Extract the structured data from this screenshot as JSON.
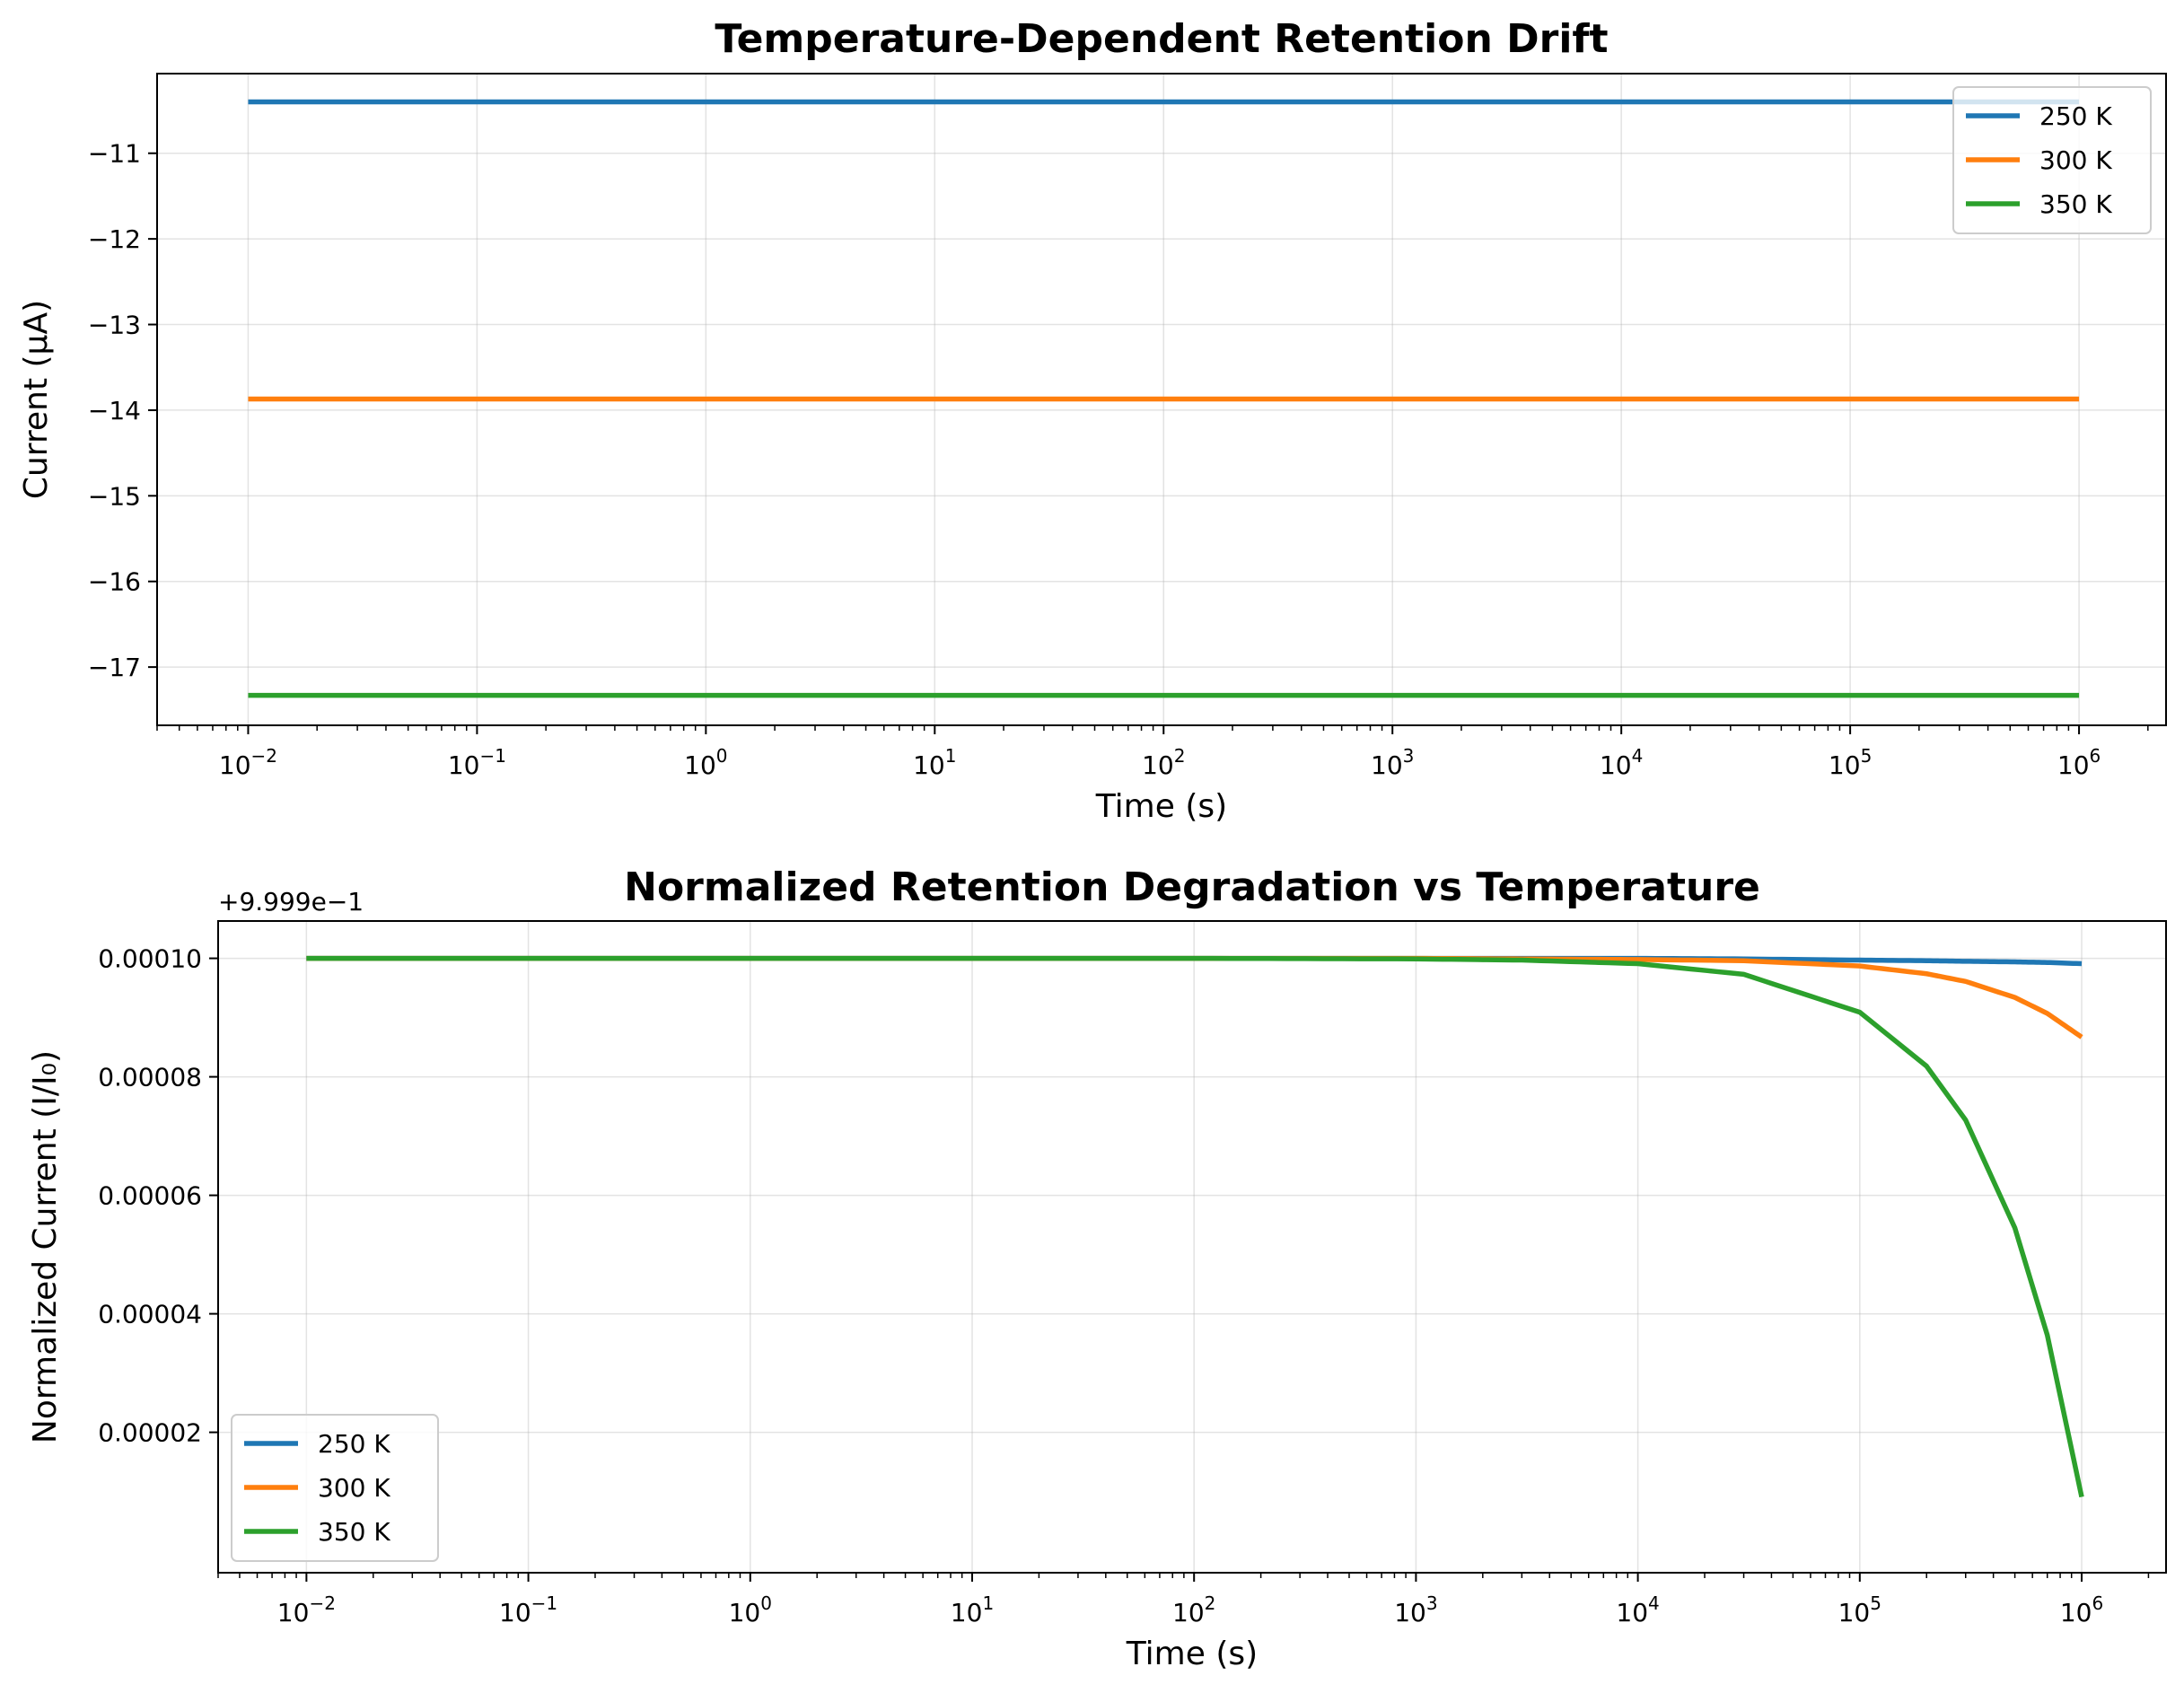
{
  "chart_data": [
    {
      "type": "line",
      "title": "Temperature-Dependent Retention Drift",
      "xlabel": "Time (s)",
      "ylabel": "Current (µA)",
      "xscale": "log",
      "xlim": [
        0.004,
        2400000
      ],
      "ylim": [
        -17.68,
        -10.07
      ],
      "x_ticks": [
        {
          "base": "10",
          "exp": "−2",
          "value": 0.01
        },
        {
          "base": "10",
          "exp": "−1",
          "value": 0.1
        },
        {
          "base": "10",
          "exp": "0",
          "value": 1
        },
        {
          "base": "10",
          "exp": "1",
          "value": 10
        },
        {
          "base": "10",
          "exp": "2",
          "value": 100
        },
        {
          "base": "10",
          "exp": "3",
          "value": 1000
        },
        {
          "base": "10",
          "exp": "4",
          "value": 10000
        },
        {
          "base": "10",
          "exp": "5",
          "value": 100000
        },
        {
          "base": "10",
          "exp": "6",
          "value": 1000000
        }
      ],
      "y_ticks": [
        {
          "label": "−11",
          "value": -11
        },
        {
          "label": "−12",
          "value": -12
        },
        {
          "label": "−13",
          "value": -13
        },
        {
          "label": "−14",
          "value": -14
        },
        {
          "label": "−15",
          "value": -15
        },
        {
          "label": "−16",
          "value": -16
        },
        {
          "label": "−17",
          "value": -17
        }
      ],
      "grid": true,
      "legend_position": "top-right",
      "x": [
        0.01,
        1000000
      ],
      "series": [
        {
          "name": "250 K",
          "color": "#1f77b4",
          "values": [
            -10.4,
            -10.4
          ]
        },
        {
          "name": "300 K",
          "color": "#ff7f0e",
          "values": [
            -13.87,
            -13.87
          ]
        },
        {
          "name": "350 K",
          "color": "#2ca02c",
          "values": [
            -17.33,
            -17.33
          ]
        }
      ]
    },
    {
      "type": "line",
      "title": "Normalized Retention Degradation vs Temperature",
      "xlabel": "Time (s)",
      "ylabel": "Normalized Current (I/I₀)",
      "y_offset_label": "+9.999e−1",
      "xscale": "log",
      "xlim": [
        0.004,
        2400000
      ],
      "ylim": [
        -3.7e-06,
        0.0001063
      ],
      "x_ticks": [
        {
          "base": "10",
          "exp": "−2",
          "value": 0.01
        },
        {
          "base": "10",
          "exp": "−1",
          "value": 0.1
        },
        {
          "base": "10",
          "exp": "0",
          "value": 1
        },
        {
          "base": "10",
          "exp": "1",
          "value": 10
        },
        {
          "base": "10",
          "exp": "2",
          "value": 100
        },
        {
          "base": "10",
          "exp": "3",
          "value": 1000
        },
        {
          "base": "10",
          "exp": "4",
          "value": 10000
        },
        {
          "base": "10",
          "exp": "5",
          "value": 100000
        },
        {
          "base": "10",
          "exp": "6",
          "value": 1000000
        }
      ],
      "y_ticks": [
        {
          "label": "0.00010",
          "value": 0.0001
        },
        {
          "label": "0.00008",
          "value": 8e-05
        },
        {
          "label": "0.00006",
          "value": 6e-05
        },
        {
          "label": "0.00004",
          "value": 4e-05
        },
        {
          "label": "0.00002",
          "value": 2e-05
        }
      ],
      "grid": true,
      "legend_position": "bottom-left",
      "x": [
        0.01,
        1,
        100,
        1000,
        3000,
        10000,
        30000,
        100000,
        200000,
        300000,
        500000,
        700000,
        1000000
      ],
      "series": [
        {
          "name": "250 K",
          "color": "#1f77b4",
          "values": [
            0.0001,
            0.0001,
            0.0001,
            0.0001,
            0.0001,
            0.0001,
            9.99e-05,
            9.97e-05,
            9.96e-05,
            9.95e-05,
            9.94e-05,
            9.93e-05,
            9.91e-05
          ]
        },
        {
          "name": "300 K",
          "color": "#ff7f0e",
          "values": [
            0.0001,
            0.0001,
            0.0001,
            0.0001,
            9.99e-05,
            9.98e-05,
            9.96e-05,
            9.87e-05,
            9.74e-05,
            9.61e-05,
            9.34e-05,
            9.07e-05,
            8.67e-05
          ]
        },
        {
          "name": "350 K",
          "color": "#2ca02c",
          "values": [
            0.0001,
            0.0001,
            0.0001,
            9.99e-05,
            9.97e-05,
            9.91e-05,
            9.73e-05,
            9.09e-05,
            8.18e-05,
            7.27e-05,
            5.45e-05,
            3.64e-05,
            9.1e-06
          ]
        }
      ]
    }
  ]
}
